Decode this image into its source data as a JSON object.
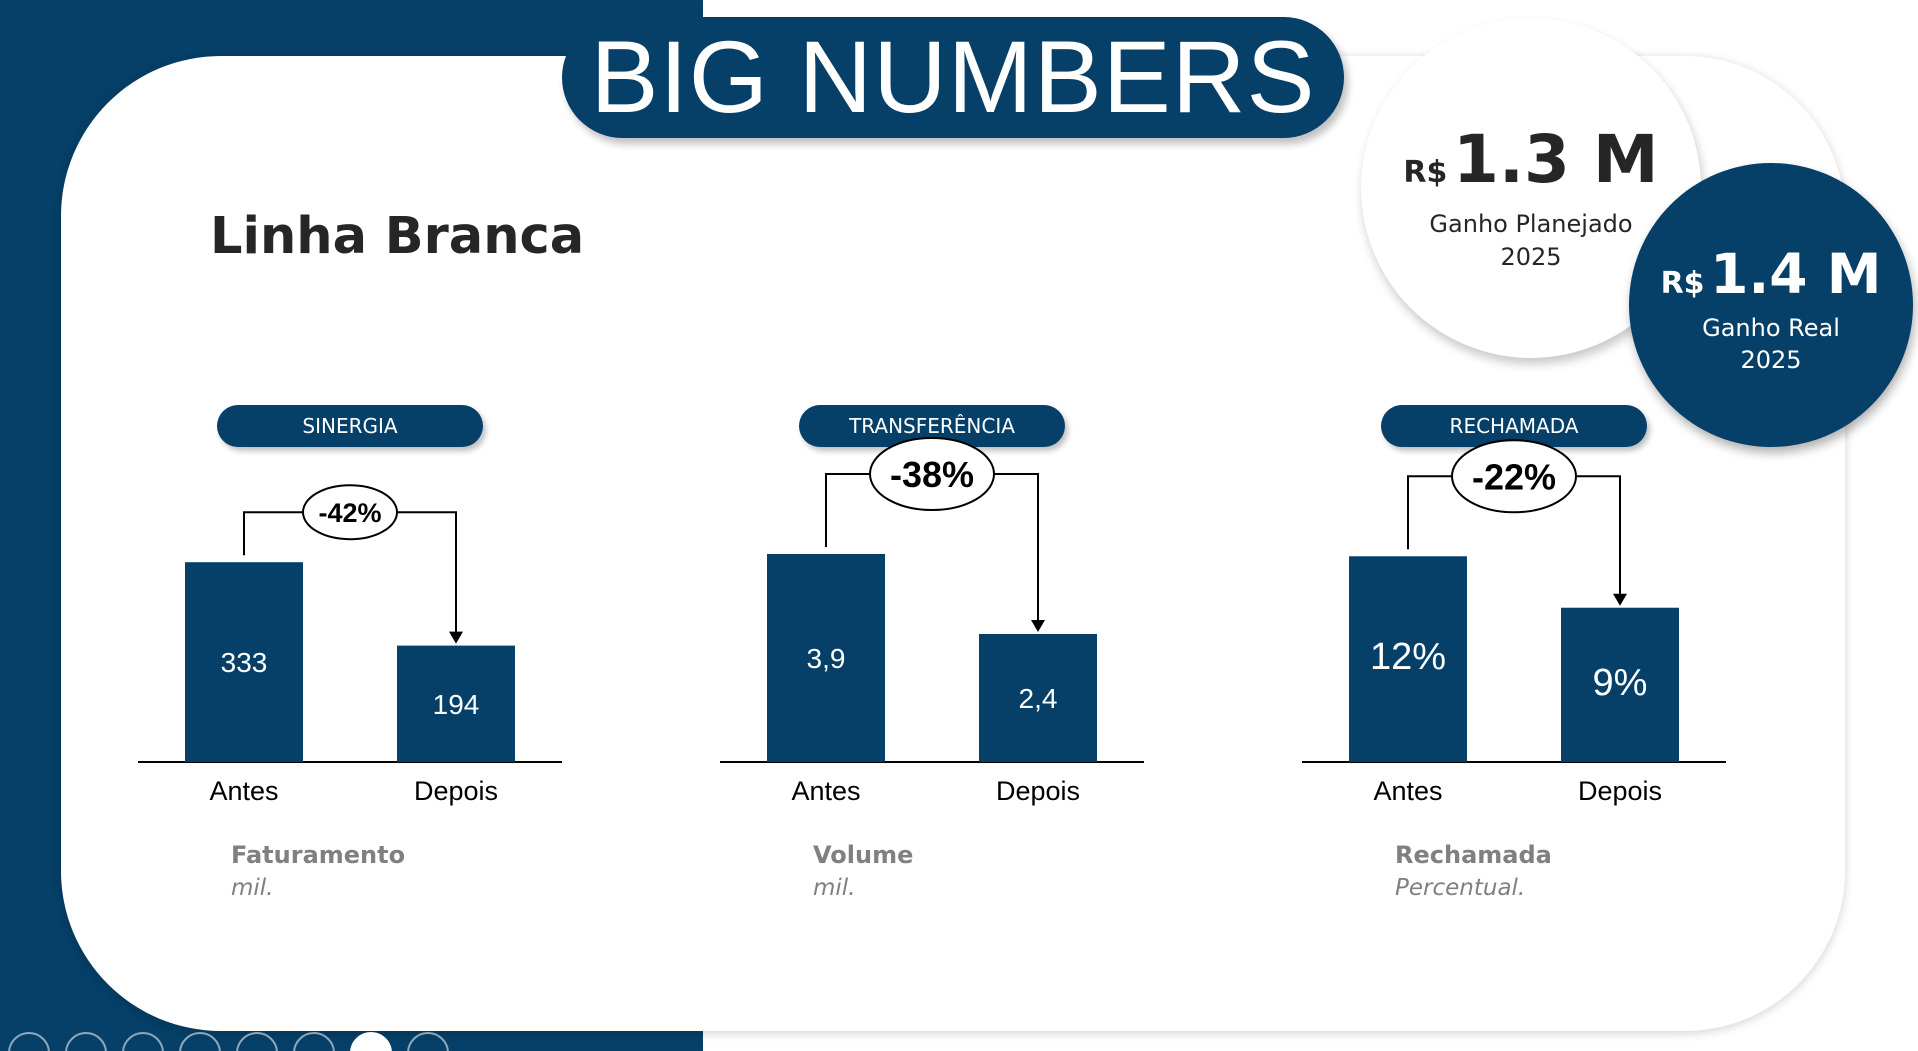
{
  "title": "BIG NUMBERS",
  "section": "Linha Branca",
  "kpis": {
    "planned": {
      "currency": "R$",
      "value": "1.3 M",
      "line1": "Ganho Planejado",
      "line2": "2025"
    },
    "real": {
      "currency": "R$",
      "value": "1.4 M",
      "line1": "Ganho Real",
      "line2": "2025"
    }
  },
  "colors": {
    "primary": "#063f67",
    "muted_text": "#808080",
    "dark_text": "#262626"
  },
  "toolbar_icons": [
    "previous-icon",
    "next-icon",
    "pen-icon",
    "slides-icon",
    "zoom-icon",
    "subtitles-icon",
    "camera-icon",
    "more-icon"
  ],
  "chart_data": [
    {
      "type": "bar",
      "badge": "SINERGIA",
      "categories": [
        "Antes",
        "Depois"
      ],
      "values": [
        333,
        194
      ],
      "value_labels": [
        "333",
        "194"
      ],
      "change_label": "-42%",
      "metric": "Faturamento",
      "unit": "mil.",
      "ylim": [
        0,
        400
      ]
    },
    {
      "type": "bar",
      "badge": "TRANSFERÊNCIA",
      "categories": [
        "Antes",
        "Depois"
      ],
      "values": [
        3.9,
        2.4
      ],
      "value_labels": [
        "3,9",
        "2,4"
      ],
      "change_label": "-38%",
      "metric": "Volume",
      "unit": "mil.",
      "ylim": [
        0,
        4.5
      ]
    },
    {
      "type": "bar",
      "badge": "RECHAMADA",
      "categories": [
        "Antes",
        "Depois"
      ],
      "values": [
        12,
        9
      ],
      "value_labels": [
        "12%",
        "9%"
      ],
      "change_label": "-22%",
      "metric": "Rechamada",
      "unit": "Percentual.",
      "ylim": [
        0,
        14
      ]
    }
  ]
}
